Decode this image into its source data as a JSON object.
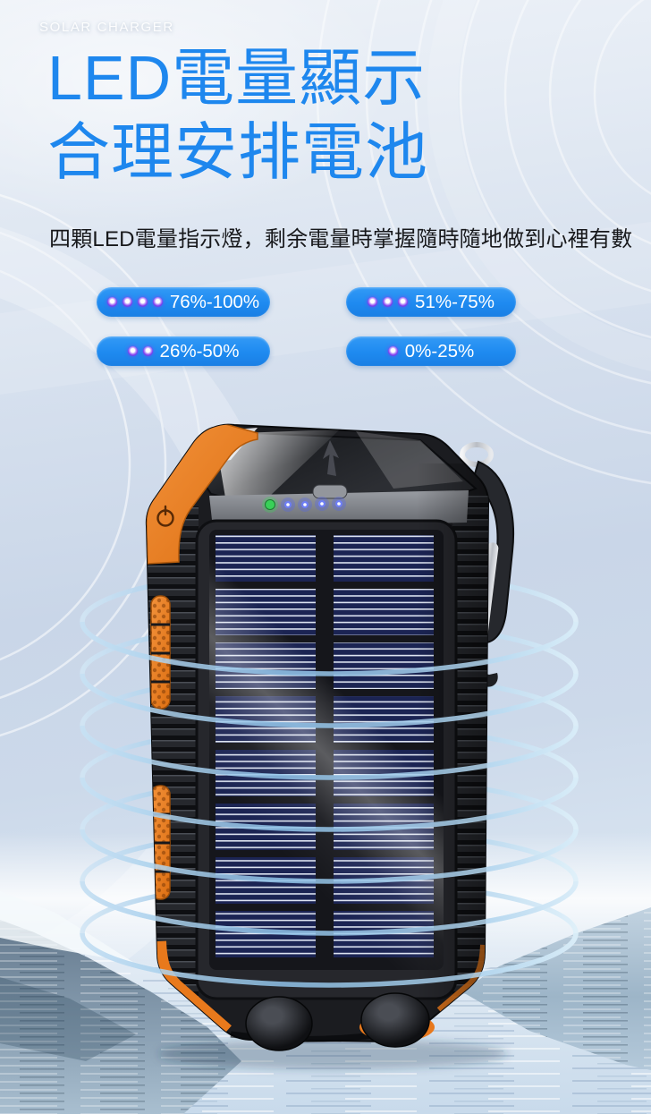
{
  "page": {
    "brand": "SOLAR CHARGER"
  },
  "hero": {
    "title_line1": "LED電量顯示",
    "title_line2": "合理安排電池",
    "subtitle": "四顆LED電量指示燈，剩余電量時掌握隨時隨地做到心裡有數"
  },
  "battery_levels": [
    {
      "dots": 4,
      "label": "76%-100%"
    },
    {
      "dots": 3,
      "label": "51%-75%"
    },
    {
      "dots": 2,
      "label": "26%-50%"
    },
    {
      "dots": 1,
      "label": "0%-25%"
    }
  ],
  "device": {
    "status_leds": {
      "green_count": 1,
      "blue_count": 4
    }
  },
  "colors": {
    "title_blue": "#1e87ee",
    "pill_blue": "#1e8af0",
    "led_purple": "#7c3aed",
    "device_orange": "#e8791c",
    "ring_blue": "#85b9e2"
  }
}
